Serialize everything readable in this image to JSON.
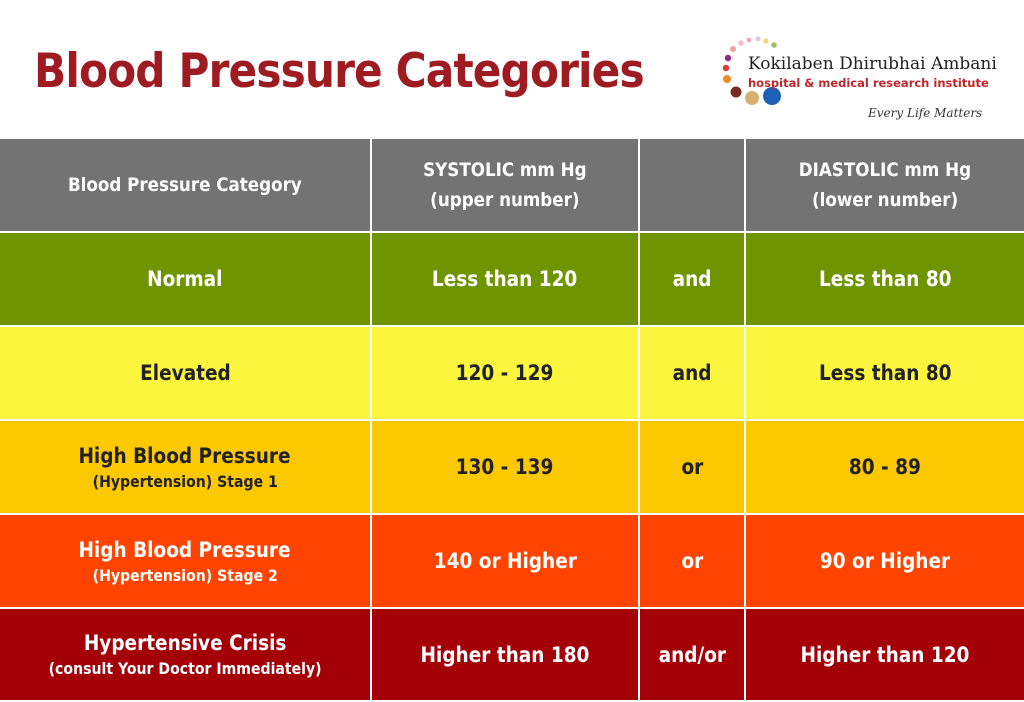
{
  "title": "Blood Pressure Categories",
  "logo": {
    "name": "Kokilaben Dhirubhai Ambani",
    "subtitle": "hospital & medical research institute",
    "tagline": "Every Life Matters"
  },
  "headers": {
    "category": "Blood Pressure Category",
    "systolic_line1": "SYSTOLIC mm Hg",
    "systolic_line2": "(upper number)",
    "connector": "",
    "diastolic_line1": "DIASTOLIC mm Hg",
    "diastolic_line2": "(lower number)"
  },
  "rows": [
    {
      "category": "Normal",
      "category_sub": "",
      "systolic": "Less than 120",
      "connector": "and",
      "diastolic": "Less than 80"
    },
    {
      "category": "Elevated",
      "category_sub": "",
      "systolic": "120 - 129",
      "connector": "and",
      "diastolic": "Less than 80"
    },
    {
      "category": "High Blood Pressure",
      "category_sub": "(Hypertension) Stage 1",
      "systolic": "130 - 139",
      "connector": "or",
      "diastolic": "80 - 89"
    },
    {
      "category": "High Blood Pressure",
      "category_sub": "(Hypertension) Stage 2",
      "systolic": "140 or Higher",
      "connector": "or",
      "diastolic": "90 or Higher"
    },
    {
      "category": "Hypertensive Crisis",
      "category_sub": "(consult Your Doctor Immediately)",
      "systolic": "Higher than 180",
      "connector": "and/or",
      "diastolic": "Higher than 120"
    }
  ],
  "colors": {
    "title": "#9e1b22",
    "header": "#737373",
    "normal": "#6e9500",
    "elevated": "#fcf53d",
    "stage1": "#fcc900",
    "stage2": "#fe4400",
    "crisis": "#a30008"
  }
}
